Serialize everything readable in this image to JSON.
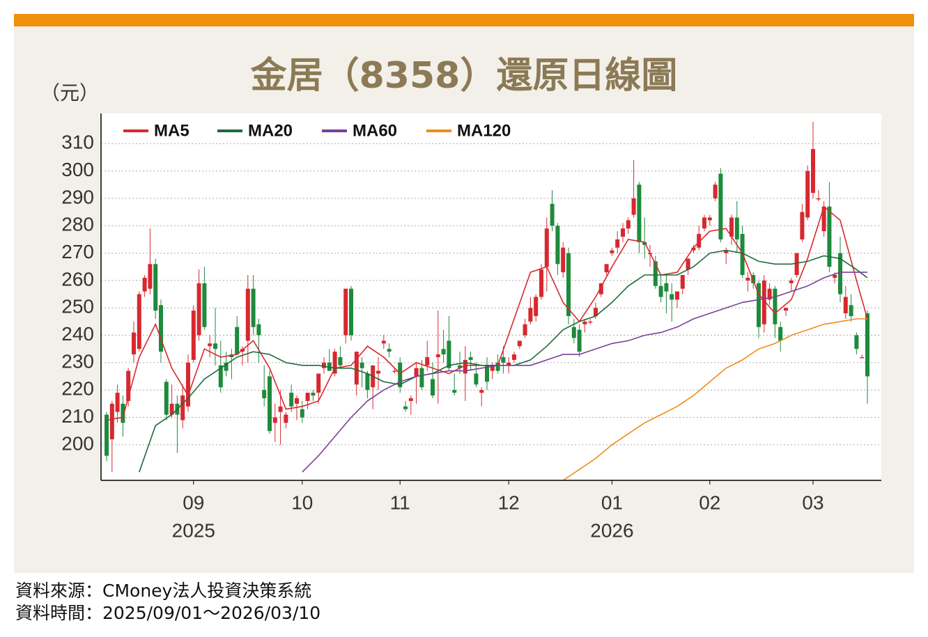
{
  "chart_data": {
    "type": "candlestick",
    "title": "金居（8358）還原日線圖",
    "y_unit": "（元）",
    "source": "資料來源：CMoney法人投資決策系統",
    "period": "資料時間：2025/09/01～2026/03/10",
    "up_color": "#d7282f",
    "down_color": "#1e8a3c",
    "grid": true,
    "legend": "top-left",
    "ylim": [
      187,
      321
    ],
    "yticks": [
      200,
      210,
      220,
      230,
      240,
      250,
      260,
      270,
      280,
      290,
      300,
      310
    ],
    "xlim": [
      0,
      140
    ],
    "xticks": [
      {
        "value": 16,
        "label": "09"
      },
      {
        "value": 36,
        "label": "10"
      },
      {
        "value": 54,
        "label": "11"
      },
      {
        "value": 74,
        "label": "12"
      },
      {
        "value": 93,
        "label": "01"
      },
      {
        "value": 111,
        "label": "02"
      },
      {
        "value": 130,
        "label": "03"
      }
    ],
    "year_labels": [
      {
        "value": 16,
        "label": "2025"
      },
      {
        "value": 93,
        "label": "2026"
      }
    ],
    "ohlc": [
      [
        211,
        212,
        194,
        196
      ],
      [
        202,
        216,
        190,
        215
      ],
      [
        212,
        222,
        208,
        219
      ],
      [
        215,
        218,
        203,
        208
      ],
      [
        216,
        228,
        214,
        227
      ],
      [
        233,
        245,
        230,
        241
      ],
      [
        235,
        256,
        234,
        255
      ],
      [
        256,
        262,
        254,
        261
      ],
      [
        257,
        279,
        255,
        266
      ],
      [
        266,
        268,
        246,
        249
      ],
      [
        251,
        253,
        230,
        234
      ],
      [
        223,
        224,
        209,
        211
      ],
      [
        211,
        222,
        210,
        215
      ],
      [
        215,
        218,
        197,
        211
      ],
      [
        209,
        222,
        206,
        218
      ],
      [
        214,
        233,
        212,
        230
      ],
      [
        231,
        251,
        230,
        249
      ],
      [
        240,
        264,
        238,
        259
      ],
      [
        259,
        265,
        242,
        243
      ],
      [
        236,
        240,
        232,
        237
      ],
      [
        237,
        250,
        229,
        235
      ],
      [
        229,
        238,
        219,
        221
      ],
      [
        230,
        234,
        225,
        227
      ],
      [
        233,
        235,
        224,
        232
      ],
      [
        243,
        247,
        233,
        233
      ],
      [
        234,
        236,
        229,
        235
      ],
      [
        238,
        262,
        230,
        257
      ],
      [
        257,
        262,
        240,
        243
      ],
      [
        244,
        246,
        230,
        240
      ],
      [
        220,
        229,
        214,
        217
      ],
      [
        225,
        227,
        204,
        205
      ],
      [
        208,
        215,
        201,
        210
      ],
      [
        212,
        220,
        200,
        214
      ],
      [
        208,
        212,
        206,
        211
      ],
      [
        219,
        222,
        212,
        214
      ],
      [
        215,
        218,
        209,
        217
      ],
      [
        213,
        216,
        208,
        210
      ],
      [
        216,
        219,
        213,
        219
      ],
      [
        219,
        220,
        216,
        218
      ],
      [
        219,
        226,
        215,
        226
      ],
      [
        228,
        232,
        226,
        230
      ],
      [
        230,
        235,
        227,
        227
      ],
      [
        226,
        235,
        225,
        234
      ],
      [
        232,
        236,
        228,
        229
      ],
      [
        240,
        257,
        237,
        257
      ],
      [
        257,
        258,
        238,
        240
      ],
      [
        222,
        234,
        218,
        234
      ],
      [
        230,
        232,
        221,
        228
      ],
      [
        226,
        227,
        217,
        220
      ],
      [
        221,
        229,
        213,
        229
      ],
      [
        226,
        232,
        220,
        227
      ],
      [
        237,
        240,
        235,
        238
      ],
      [
        235,
        237,
        232,
        234
      ],
      [
        227,
        228,
        226,
        227
      ],
      [
        230,
        232,
        219,
        221
      ],
      [
        214,
        216,
        212,
        213
      ],
      [
        216,
        218,
        211,
        217
      ],
      [
        225,
        230,
        215,
        228
      ],
      [
        228,
        231,
        220,
        221
      ],
      [
        229,
        238,
        227,
        232
      ],
      [
        224,
        230,
        217,
        218
      ],
      [
        232,
        249,
        215,
        233
      ],
      [
        235,
        242,
        230,
        233
      ],
      [
        238,
        247,
        227,
        228
      ],
      [
        220,
        226,
        218,
        219
      ],
      [
        229,
        234,
        226,
        228
      ],
      [
        226,
        236,
        216,
        231
      ],
      [
        232,
        234,
        227,
        231
      ],
      [
        226,
        230,
        221,
        222
      ],
      [
        219,
        221,
        214,
        220
      ],
      [
        229,
        232,
        220,
        223
      ],
      [
        227,
        230,
        224,
        229
      ],
      [
        230,
        233,
        226,
        227
      ],
      [
        232,
        236,
        226,
        230
      ],
      [
        229,
        232,
        226,
        230
      ],
      [
        231,
        234,
        230,
        233
      ],
      [
        236,
        238,
        235,
        238
      ],
      [
        240,
        246,
        239,
        244
      ],
      [
        245,
        254,
        244,
        250
      ],
      [
        247,
        255,
        245,
        254
      ],
      [
        254,
        266,
        253,
        264
      ],
      [
        265,
        283,
        256,
        279
      ],
      [
        288,
        293,
        278,
        280
      ],
      [
        280,
        281,
        262,
        266
      ],
      [
        263,
        274,
        261,
        272
      ],
      [
        270,
        272,
        244,
        247
      ],
      [
        243,
        246,
        237,
        239
      ],
      [
        242,
        244,
        232,
        234
      ],
      [
        244,
        246,
        241,
        245
      ],
      [
        245,
        246,
        244,
        245
      ],
      [
        247,
        252,
        246,
        250
      ],
      [
        255,
        259,
        254,
        259
      ],
      [
        263,
        266,
        262,
        266
      ],
      [
        270,
        272,
        269,
        271
      ],
      [
        272,
        278,
        270,
        275
      ],
      [
        276,
        281,
        274,
        279
      ],
      [
        279,
        283,
        277,
        282
      ],
      [
        284,
        304,
        283,
        290
      ],
      [
        295,
        296,
        270,
        274
      ],
      [
        274,
        283,
        268,
        273
      ],
      [
        270,
        273,
        265,
        270
      ],
      [
        267,
        269,
        257,
        258
      ],
      [
        258,
        262,
        252,
        254
      ],
      [
        259,
        262,
        248,
        256
      ],
      [
        255,
        259,
        245,
        253
      ],
      [
        253,
        256,
        250,
        256
      ],
      [
        257,
        262,
        255,
        262
      ],
      [
        264,
        268,
        262,
        268
      ],
      [
        271,
        273,
        270,
        272
      ],
      [
        272,
        280,
        271,
        277
      ],
      [
        279,
        284,
        278,
        283
      ],
      [
        282,
        284,
        280,
        283
      ],
      [
        290,
        296,
        289,
        295
      ],
      [
        299,
        301,
        274,
        275
      ],
      [
        270,
        272,
        266,
        271
      ],
      [
        276,
        284,
        273,
        283
      ],
      [
        283,
        289,
        270,
        275
      ],
      [
        277,
        280,
        261,
        262
      ],
      [
        260,
        263,
        256,
        261
      ],
      [
        262,
        263,
        257,
        259
      ],
      [
        259,
        260,
        239,
        243
      ],
      [
        244,
        262,
        241,
        260
      ],
      [
        253,
        259,
        251,
        257
      ],
      [
        257,
        258,
        239,
        244
      ],
      [
        243,
        245,
        234,
        238
      ],
      [
        249,
        250,
        247,
        250
      ],
      [
        259,
        261,
        256,
        260
      ],
      [
        262,
        270,
        261,
        270
      ],
      [
        275,
        288,
        274,
        285
      ],
      [
        283,
        302,
        282,
        300
      ],
      [
        292,
        318,
        290,
        308
      ],
      [
        290,
        293,
        289,
        290
      ],
      [
        278,
        289,
        276,
        287
      ],
      [
        287,
        296,
        263,
        265
      ],
      [
        261,
        263,
        259,
        262
      ],
      [
        270,
        276,
        252,
        255
      ],
      [
        248,
        258,
        246,
        254
      ],
      [
        251,
        255,
        245,
        247
      ],
      [
        240,
        241,
        233,
        235
      ],
      [
        232,
        233,
        232,
        232
      ],
      [
        248,
        249,
        215,
        225
      ]
    ],
    "series": [
      {
        "name": "MA5",
        "color": "#d7282f",
        "x": [
          0,
          3,
          6,
          9,
          12,
          15,
          18,
          21,
          24,
          27,
          30,
          33,
          36,
          39,
          42,
          45,
          48,
          51,
          54,
          57,
          60,
          63,
          66,
          69,
          72,
          75,
          78,
          81,
          84,
          87,
          90,
          93,
          96,
          99,
          102,
          105,
          108,
          111,
          114,
          117,
          120,
          123,
          126,
          129,
          132,
          135,
          138,
          140
        ],
        "values": [
          209,
          210,
          232,
          244,
          228,
          218,
          235,
          232,
          233,
          238,
          228,
          213,
          214,
          216,
          228,
          229,
          236,
          232,
          226,
          230,
          228,
          226,
          229,
          229,
          229,
          246,
          263,
          265,
          252,
          245,
          254,
          265,
          275,
          274,
          262,
          263,
          272,
          278,
          279,
          270,
          255,
          248,
          253,
          268,
          287,
          282,
          260,
          246
        ]
      },
      {
        "name": "MA20",
        "color": "#1e6b3a",
        "x": [
          6,
          9,
          12,
          15,
          18,
          21,
          24,
          27,
          30,
          33,
          36,
          39,
          42,
          45,
          48,
          51,
          54,
          57,
          60,
          63,
          66,
          69,
          72,
          75,
          78,
          81,
          84,
          87,
          90,
          93,
          96,
          99,
          102,
          105,
          108,
          111,
          114,
          117,
          120,
          123,
          126,
          129,
          132,
          135,
          138,
          140
        ],
        "values": [
          190,
          207,
          211,
          217,
          224,
          228,
          232,
          234,
          233,
          230,
          229,
          229,
          228,
          228,
          226,
          223,
          222,
          225,
          226,
          229,
          230,
          229,
          229,
          229,
          231,
          236,
          242,
          245,
          247,
          252,
          258,
          262,
          262,
          262,
          265,
          270,
          271,
          270,
          267,
          266,
          266,
          267,
          269,
          268,
          264,
          261
        ]
      },
      {
        "name": "MA60",
        "color": "#7b3f98",
        "x": [
          36,
          39,
          42,
          45,
          48,
          51,
          54,
          57,
          60,
          63,
          66,
          69,
          72,
          75,
          78,
          81,
          84,
          87,
          90,
          93,
          96,
          99,
          102,
          105,
          108,
          111,
          114,
          117,
          120,
          123,
          126,
          129,
          132,
          135,
          138,
          140
        ],
        "values": [
          190,
          196,
          203,
          210,
          216,
          220,
          223,
          225,
          226,
          227,
          227,
          228,
          229,
          229,
          229,
          231,
          233,
          233,
          235,
          237,
          238,
          240,
          241,
          243,
          246,
          248,
          250,
          252,
          253,
          254,
          256,
          258,
          261,
          263,
          263,
          263
        ]
      },
      {
        "name": "MA120",
        "color": "#f08c1a",
        "x": [
          84,
          87,
          90,
          93,
          96,
          99,
          102,
          105,
          108,
          111,
          114,
          117,
          120,
          123,
          126,
          129,
          132,
          135,
          138,
          140
        ],
        "values": [
          187,
          191,
          195,
          200,
          204,
          208,
          211,
          214,
          218,
          223,
          228,
          231,
          235,
          237,
          240,
          242,
          244,
          245,
          246,
          246
        ]
      }
    ]
  }
}
